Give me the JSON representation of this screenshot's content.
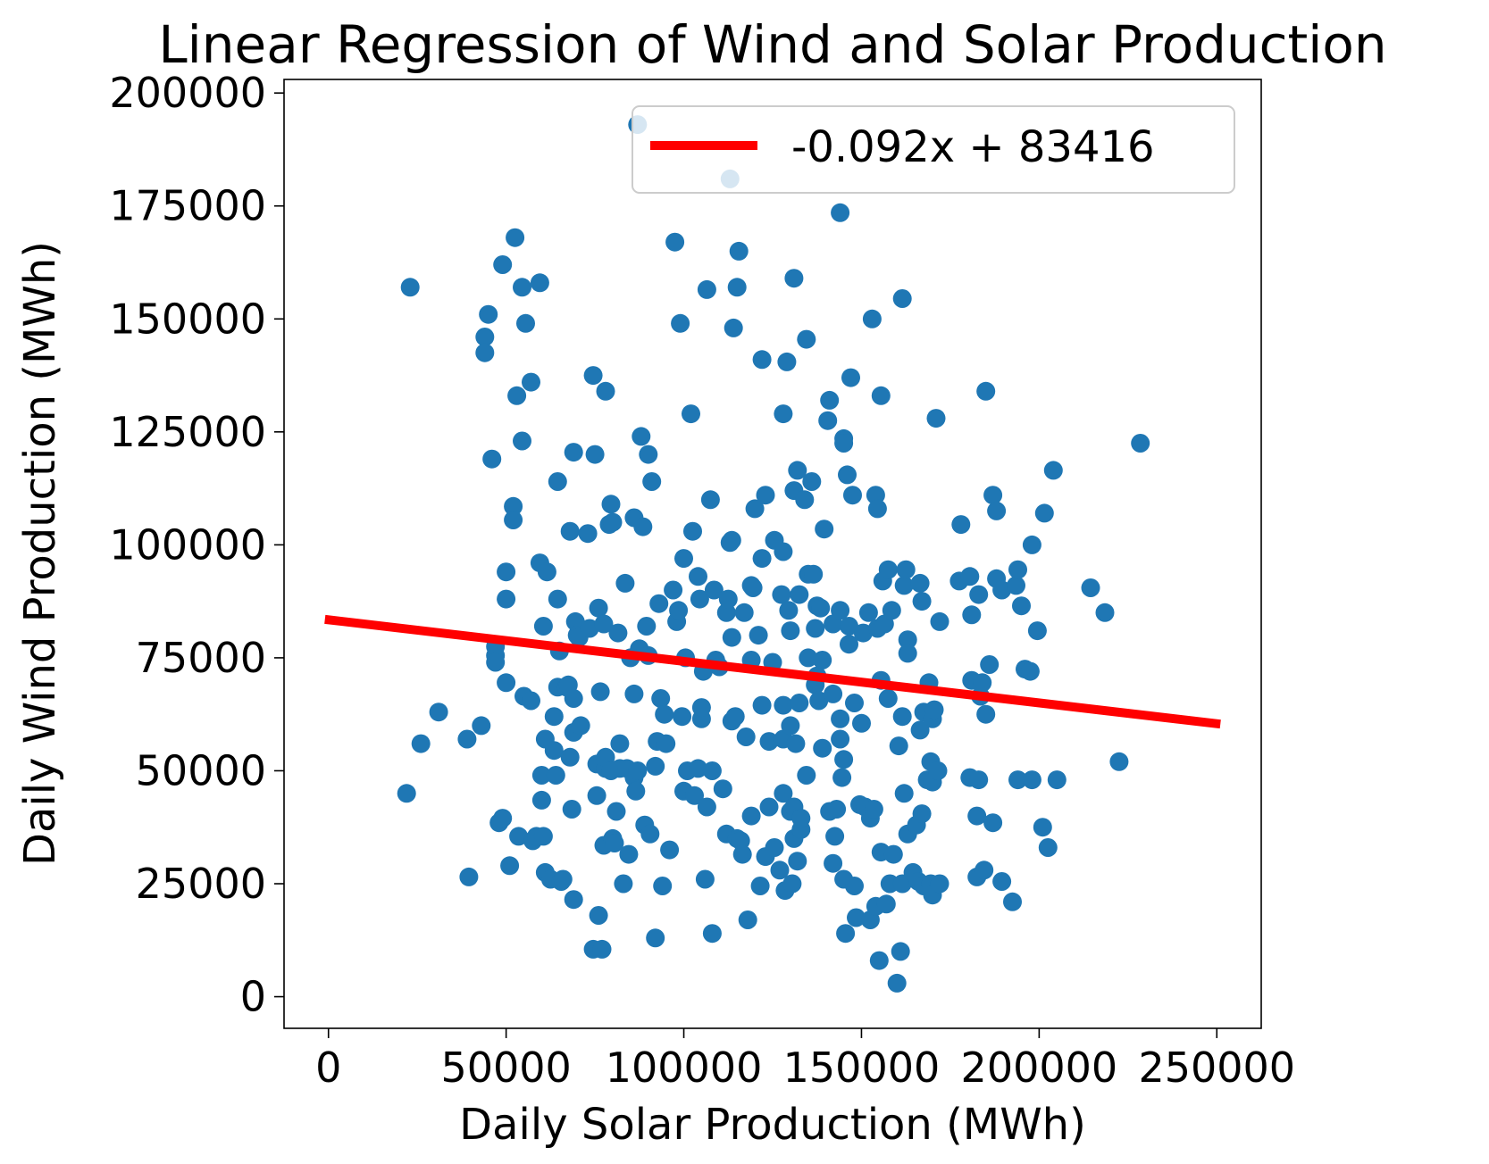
{
  "chart_data": {
    "type": "scatter",
    "title": "Linear Regression of Wind and Solar Production",
    "xlabel": "Daily Solar Production (MWh)",
    "ylabel": "Daily Wind Production (MWh)",
    "xlim": [
      -12500,
      262500
    ],
    "ylim": [
      -7000,
      203000
    ],
    "x_ticks": [
      0,
      50000,
      100000,
      150000,
      200000,
      250000
    ],
    "y_ticks": [
      0,
      25000,
      50000,
      75000,
      100000,
      125000,
      150000,
      175000,
      200000
    ],
    "grid": false,
    "legend_placement": "top-right",
    "colors": {
      "points": "#1f77b4",
      "fit_line": "#ff0000"
    },
    "fit_line": {
      "label": "-0.092x + 83416",
      "slope": -0.092,
      "intercept": 83416,
      "x_range": [
        -1000,
        251000
      ]
    },
    "points": [
      [
        23000,
        157000
      ],
      [
        22000,
        45000
      ],
      [
        26000,
        56000
      ],
      [
        31000,
        63000
      ],
      [
        39000,
        57000
      ],
      [
        39500,
        26500
      ],
      [
        43000,
        60000
      ],
      [
        44000,
        146000
      ],
      [
        44000,
        142500
      ],
      [
        45000,
        151000
      ],
      [
        46000,
        119000
      ],
      [
        47000,
        77500
      ],
      [
        47000,
        75500
      ],
      [
        47000,
        74000
      ],
      [
        48000,
        38500
      ],
      [
        49000,
        162000
      ],
      [
        49000,
        39500
      ],
      [
        50000,
        94000
      ],
      [
        50000,
        69500
      ],
      [
        50000,
        88000
      ],
      [
        51000,
        29000
      ],
      [
        52000,
        108500
      ],
      [
        52000,
        105500
      ],
      [
        52500,
        168000
      ],
      [
        53000,
        133000
      ],
      [
        53500,
        35500
      ],
      [
        54500,
        123000
      ],
      [
        54500,
        157000
      ],
      [
        55000,
        66500
      ],
      [
        55500,
        149000
      ],
      [
        57000,
        136000
      ],
      [
        57000,
        65500
      ],
      [
        57500,
        34500
      ],
      [
        58500,
        35500
      ],
      [
        59500,
        158000
      ],
      [
        59500,
        96000
      ],
      [
        60000,
        49000
      ],
      [
        60000,
        43500
      ],
      [
        60500,
        82000
      ],
      [
        60500,
        35500
      ],
      [
        61000,
        27500
      ],
      [
        61000,
        57000
      ],
      [
        61500,
        94000
      ],
      [
        62500,
        26000
      ],
      [
        63500,
        54500
      ],
      [
        63500,
        62000
      ],
      [
        64000,
        49000
      ],
      [
        64500,
        114000
      ],
      [
        64500,
        88000
      ],
      [
        64500,
        68500
      ],
      [
        65000,
        76500
      ],
      [
        65500,
        25500
      ],
      [
        66000,
        26000
      ],
      [
        67000,
        68500
      ],
      [
        67500,
        69000
      ],
      [
        68000,
        103000
      ],
      [
        68000,
        53000
      ],
      [
        68500,
        41500
      ],
      [
        69000,
        58500
      ],
      [
        69000,
        21500
      ],
      [
        69000,
        66000
      ],
      [
        69000,
        120500
      ],
      [
        69500,
        83000
      ],
      [
        70000,
        80000
      ],
      [
        70500,
        79500
      ],
      [
        71000,
        60000
      ],
      [
        73000,
        102500
      ],
      [
        73500,
        81500
      ],
      [
        74500,
        10500
      ],
      [
        74500,
        137500
      ],
      [
        75000,
        120000
      ],
      [
        75500,
        44500
      ],
      [
        75500,
        51500
      ],
      [
        76000,
        86000
      ],
      [
        76000,
        18000
      ],
      [
        76500,
        67500
      ],
      [
        77000,
        10500
      ],
      [
        77500,
        82500
      ],
      [
        77500,
        33500
      ],
      [
        78000,
        134000
      ],
      [
        78000,
        50500
      ],
      [
        78000,
        53000
      ],
      [
        79000,
        104500
      ],
      [
        79500,
        109000
      ],
      [
        79500,
        50000
      ],
      [
        80000,
        35000
      ],
      [
        80000,
        105000
      ],
      [
        80500,
        34000
      ],
      [
        81000,
        41000
      ],
      [
        81500,
        80500
      ],
      [
        82000,
        50500
      ],
      [
        82000,
        56000
      ],
      [
        83000,
        25000
      ],
      [
        83500,
        91500
      ],
      [
        84000,
        50500
      ],
      [
        84500,
        31500
      ],
      [
        85000,
        75000
      ],
      [
        86000,
        106000
      ],
      [
        86000,
        67000
      ],
      [
        86000,
        48500
      ],
      [
        86500,
        45500
      ],
      [
        87000,
        193000
      ],
      [
        87000,
        50000
      ],
      [
        87500,
        77000
      ],
      [
        88000,
        124000
      ],
      [
        88500,
        104000
      ],
      [
        89000,
        38000
      ],
      [
        89500,
        82000
      ],
      [
        90000,
        75500
      ],
      [
        90000,
        120000
      ],
      [
        90500,
        36000
      ],
      [
        91000,
        114000
      ],
      [
        92000,
        13000
      ],
      [
        92000,
        51000
      ],
      [
        92500,
        56500
      ],
      [
        93000,
        87000
      ],
      [
        93500,
        66000
      ],
      [
        94000,
        24500
      ],
      [
        94500,
        62500
      ],
      [
        95000,
        56000
      ],
      [
        96000,
        32500
      ],
      [
        97000,
        90000
      ],
      [
        97500,
        167000
      ],
      [
        98000,
        83000
      ],
      [
        98500,
        85500
      ],
      [
        99000,
        149000
      ],
      [
        99500,
        62000
      ],
      [
        100000,
        97000
      ],
      [
        100000,
        45500
      ],
      [
        100500,
        75000
      ],
      [
        101000,
        50000
      ],
      [
        102000,
        129000
      ],
      [
        102500,
        103000
      ],
      [
        103000,
        44500
      ],
      [
        104000,
        50500
      ],
      [
        104000,
        93000
      ],
      [
        104500,
        88000
      ],
      [
        105000,
        61500
      ],
      [
        105000,
        64000
      ],
      [
        105500,
        72000
      ],
      [
        106000,
        26000
      ],
      [
        106500,
        42000
      ],
      [
        106500,
        156500
      ],
      [
        107500,
        110000
      ],
      [
        108000,
        50000
      ],
      [
        108000,
        14000
      ],
      [
        108500,
        90000
      ],
      [
        109000,
        74500
      ],
      [
        110000,
        73000
      ],
      [
        111000,
        46000
      ],
      [
        112000,
        36000
      ],
      [
        112000,
        85000
      ],
      [
        112500,
        88000
      ],
      [
        113000,
        181000
      ],
      [
        113500,
        79500
      ],
      [
        113000,
        100500
      ],
      [
        113500,
        101000
      ],
      [
        113500,
        61000
      ],
      [
        114000,
        148000
      ],
      [
        114500,
        62000
      ],
      [
        115000,
        157000
      ],
      [
        115000,
        35000
      ],
      [
        115500,
        165000
      ],
      [
        116000,
        34500
      ],
      [
        116500,
        31500
      ],
      [
        117000,
        85000
      ],
      [
        117500,
        57500
      ],
      [
        118000,
        17000
      ],
      [
        119000,
        40000
      ],
      [
        119000,
        91000
      ],
      [
        119000,
        74500
      ],
      [
        119500,
        90500
      ],
      [
        120000,
        108000
      ],
      [
        121000,
        80000
      ],
      [
        121500,
        24500
      ],
      [
        122000,
        64500
      ],
      [
        122000,
        141000
      ],
      [
        122000,
        97000
      ],
      [
        123000,
        111000
      ],
      [
        123000,
        31000
      ],
      [
        124000,
        56500
      ],
      [
        124000,
        42000
      ],
      [
        125000,
        74000
      ],
      [
        125500,
        33000
      ],
      [
        125500,
        101000
      ],
      [
        127000,
        28000
      ],
      [
        127500,
        89000
      ],
      [
        128000,
        98500
      ],
      [
        128000,
        64500
      ],
      [
        128000,
        129000
      ],
      [
        128000,
        45000
      ],
      [
        128000,
        57000
      ],
      [
        128500,
        23500
      ],
      [
        129000,
        140500
      ],
      [
        129500,
        85500
      ],
      [
        130000,
        60000
      ],
      [
        130000,
        81000
      ],
      [
        130000,
        41000
      ],
      [
        130500,
        25000
      ],
      [
        131000,
        112000
      ],
      [
        131000,
        42000
      ],
      [
        131000,
        35000
      ],
      [
        131000,
        159000
      ],
      [
        131500,
        56000
      ],
      [
        132000,
        30000
      ],
      [
        132000,
        116500
      ],
      [
        132500,
        89000
      ],
      [
        132500,
        65000
      ],
      [
        133000,
        37000
      ],
      [
        133000,
        39500
      ],
      [
        134000,
        110000
      ],
      [
        134500,
        145500
      ],
      [
        134500,
        49000
      ],
      [
        135000,
        93500
      ],
      [
        135000,
        75000
      ],
      [
        136000,
        114000
      ],
      [
        136500,
        93500
      ],
      [
        137000,
        69000
      ],
      [
        137000,
        81500
      ],
      [
        137500,
        71000
      ],
      [
        137500,
        86500
      ],
      [
        138000,
        65500
      ],
      [
        138500,
        86000
      ],
      [
        139000,
        55000
      ],
      [
        139000,
        74500
      ],
      [
        139500,
        103500
      ],
      [
        140500,
        127500
      ],
      [
        141000,
        132000
      ],
      [
        141000,
        41000
      ],
      [
        142000,
        82500
      ],
      [
        142000,
        29500
      ],
      [
        142000,
        67000
      ],
      [
        142500,
        35500
      ],
      [
        143000,
        41500
      ],
      [
        144000,
        173500
      ],
      [
        144000,
        85500
      ],
      [
        144000,
        61500
      ],
      [
        144000,
        57000
      ],
      [
        144500,
        48500
      ],
      [
        145000,
        26000
      ],
      [
        145000,
        52500
      ],
      [
        145000,
        123500
      ],
      [
        145000,
        122500
      ],
      [
        145500,
        14000
      ],
      [
        146000,
        115500
      ],
      [
        146500,
        82000
      ],
      [
        146500,
        78000
      ],
      [
        147000,
        137000
      ],
      [
        147500,
        111000
      ],
      [
        148000,
        65000
      ],
      [
        148000,
        24500
      ],
      [
        148500,
        17500
      ],
      [
        149500,
        42500
      ],
      [
        150000,
        60500
      ],
      [
        150500,
        80500
      ],
      [
        151000,
        42000
      ],
      [
        152000,
        85000
      ],
      [
        152500,
        17000
      ],
      [
        152500,
        39500
      ],
      [
        153000,
        150000
      ],
      [
        153500,
        41500
      ],
      [
        154000,
        111000
      ],
      [
        154000,
        20000
      ],
      [
        154500,
        108000
      ],
      [
        154500,
        81500
      ],
      [
        155000,
        8000
      ],
      [
        155500,
        32000
      ],
      [
        155500,
        133000
      ],
      [
        155500,
        70000
      ],
      [
        156000,
        92000
      ],
      [
        156500,
        82500
      ],
      [
        157000,
        20500
      ],
      [
        157500,
        66000
      ],
      [
        157500,
        94500
      ],
      [
        158000,
        25000
      ],
      [
        158500,
        85500
      ],
      [
        159000,
        31500
      ],
      [
        160000,
        3000
      ],
      [
        160500,
        55500
      ],
      [
        161000,
        10000
      ],
      [
        161500,
        154500
      ],
      [
        161500,
        62000
      ],
      [
        161500,
        25000
      ],
      [
        162000,
        91000
      ],
      [
        162000,
        45000
      ],
      [
        162500,
        94500
      ],
      [
        163000,
        36000
      ],
      [
        163000,
        79000
      ],
      [
        163000,
        76000
      ],
      [
        164500,
        27500
      ],
      [
        165500,
        38000
      ],
      [
        166000,
        25500
      ],
      [
        166500,
        91500
      ],
      [
        166500,
        59000
      ],
      [
        167000,
        87500
      ],
      [
        167000,
        40500
      ],
      [
        167500,
        63000
      ],
      [
        167500,
        24500
      ],
      [
        168500,
        48000
      ],
      [
        169000,
        69500
      ],
      [
        169500,
        25000
      ],
      [
        169500,
        52000
      ],
      [
        170000,
        22500
      ],
      [
        170000,
        61500
      ],
      [
        170000,
        47500
      ],
      [
        170500,
        63500
      ],
      [
        171000,
        128000
      ],
      [
        171500,
        50000
      ],
      [
        172000,
        83000
      ],
      [
        172000,
        25000
      ],
      [
        177500,
        92000
      ],
      [
        178000,
        104500
      ],
      [
        180500,
        93000
      ],
      [
        180500,
        48500
      ],
      [
        181000,
        84500
      ],
      [
        181000,
        70000
      ],
      [
        182500,
        40000
      ],
      [
        182500,
        26500
      ],
      [
        183000,
        48000
      ],
      [
        183000,
        89000
      ],
      [
        183500,
        66500
      ],
      [
        184000,
        69500
      ],
      [
        184500,
        28000
      ],
      [
        185000,
        134000
      ],
      [
        185000,
        62500
      ],
      [
        186000,
        73500
      ],
      [
        187000,
        111000
      ],
      [
        187000,
        38500
      ],
      [
        188000,
        92500
      ],
      [
        188000,
        107500
      ],
      [
        189500,
        90000
      ],
      [
        189500,
        25500
      ],
      [
        192500,
        21000
      ],
      [
        193500,
        91000
      ],
      [
        194000,
        48000
      ],
      [
        194000,
        94500
      ],
      [
        195000,
        86500
      ],
      [
        196000,
        72500
      ],
      [
        197500,
        72000
      ],
      [
        198000,
        48000
      ],
      [
        198000,
        100000
      ],
      [
        199500,
        81000
      ],
      [
        201000,
        37500
      ],
      [
        201500,
        107000
      ],
      [
        202500,
        33000
      ],
      [
        204000,
        116500
      ],
      [
        205000,
        48000
      ],
      [
        214500,
        90500
      ],
      [
        218500,
        85000
      ],
      [
        222500,
        52000
      ],
      [
        228500,
        122500
      ]
    ]
  }
}
